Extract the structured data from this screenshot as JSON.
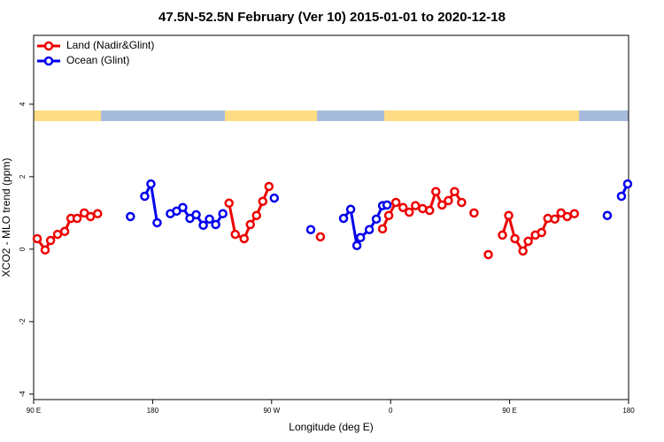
{
  "chart_data": {
    "type": "line",
    "title": "47.5N-52.5N February (Ver 10)   2015-01-01 to 2020-12-18",
    "x_label": "Longitude (deg E)",
    "y_label": "XCO2 - MLO trend (ppm)",
    "xlim": [
      90,
      540
    ],
    "ylim": [
      -4.15,
      5.9
    ],
    "xticks": [
      {
        "value": 90,
        "label": "90 E"
      },
      {
        "value": 180,
        "label": "180"
      },
      {
        "value": 270,
        "label": "90 W"
      },
      {
        "value": 360,
        "label": "0"
      },
      {
        "value": 450,
        "label": "90 E"
      },
      {
        "value": 540,
        "label": "180"
      }
    ],
    "yticks": [
      -4,
      -2,
      0,
      2,
      4
    ],
    "legend": "top-left",
    "series": [
      {
        "name": "Land (Nadir&Glint)",
        "color": "#ee0000",
        "x": [
          92.7,
          98.7,
          102.8,
          108.1,
          113.5,
          118.2,
          122.9,
          128.3,
          133.0,
          138.4,
          null,
          237.8,
          242.5,
          249.2,
          253.9,
          258.6,
          263.3,
          268.0,
          null,
          306.9,
          null,
          353.9,
          358.6,
          364.0,
          369.4,
          374.1,
          378.8,
          384.2,
          389.5,
          394.2,
          398.9,
          403.7,
          408.4,
          413.7,
          null,
          423.1,
          null,
          433.9,
          null,
          444.6,
          449.3,
          454.0,
          460.1,
          464.1,
          469.5,
          474.2,
          478.9,
          484.2,
          488.9,
          493.6,
          499.0
        ],
        "values": [
          0.29,
          -0.02,
          0.24,
          0.41,
          0.49,
          0.85,
          0.85,
          1.0,
          0.9,
          0.98,
          null,
          1.27,
          0.41,
          0.29,
          0.68,
          0.93,
          1.32,
          1.73,
          null,
          0.34,
          null,
          0.56,
          0.93,
          1.29,
          1.15,
          1.02,
          1.2,
          1.12,
          1.07,
          1.59,
          1.22,
          1.34,
          1.59,
          1.29,
          null,
          1.0,
          null,
          -0.15,
          null,
          0.39,
          0.93,
          0.29,
          -0.05,
          0.22,
          0.39,
          0.46,
          0.85,
          0.83,
          1.0,
          0.9,
          0.98
        ]
      },
      {
        "name": "Ocean (Glint)",
        "color": "#0000ee",
        "x": [
          163.2,
          null,
          174.0,
          178.7,
          183.4,
          null,
          193.4,
          198.1,
          202.8,
          208.2,
          212.9,
          218.3,
          223.0,
          227.7,
          233.1,
          null,
          272.0,
          null,
          299.6,
          null,
          324.4,
          329.8,
          334.5,
          337.2,
          343.9,
          349.2,
          353.9,
          357.3,
          null,
          523.9,
          null,
          534.6,
          539.3
        ],
        "values": [
          0.9,
          null,
          1.46,
          1.8,
          0.73,
          null,
          0.98,
          1.05,
          1.15,
          0.85,
          0.95,
          0.66,
          0.83,
          0.68,
          0.98,
          null,
          1.41,
          null,
          0.54,
          null,
          0.85,
          1.1,
          0.1,
          0.32,
          0.54,
          0.83,
          1.2,
          1.22,
          null,
          0.93,
          null,
          1.46,
          1.8
        ]
      }
    ]
  }
}
